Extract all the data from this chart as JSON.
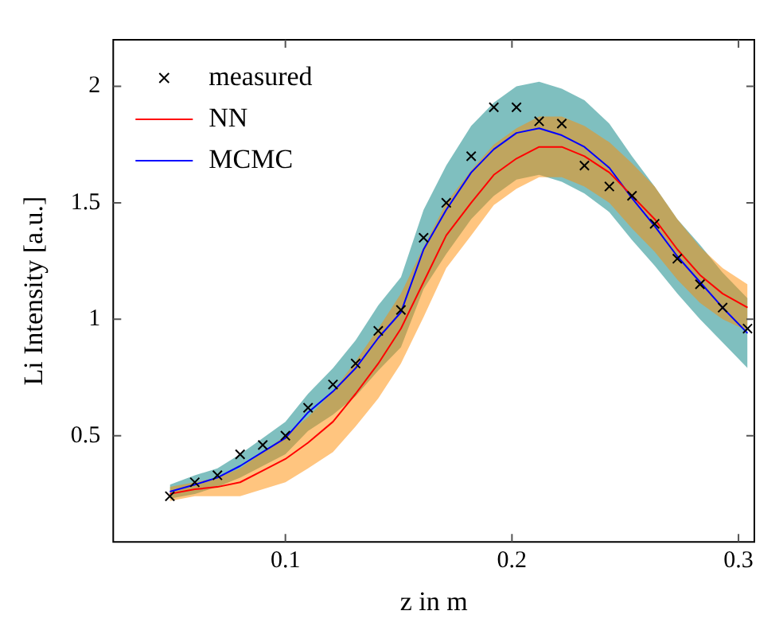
{
  "chart_data": {
    "type": "line",
    "xlabel": "z in m",
    "ylabel": "Li Intensity [a.u.]",
    "xlim": [
      0.024,
      0.307
    ],
    "ylim": [
      0.044,
      2.2
    ],
    "xticks": [
      0.1,
      0.2,
      0.3
    ],
    "yticks": [
      0.5,
      1,
      1.5,
      2
    ],
    "grid": false,
    "legend": "top left",
    "x": [
      0.049,
      0.06,
      0.07,
      0.08,
      0.09,
      0.1,
      0.11,
      0.121,
      0.131,
      0.141,
      0.151,
      0.161,
      0.171,
      0.182,
      0.192,
      0.202,
      0.212,
      0.222,
      0.232,
      0.243,
      0.253,
      0.263,
      0.273,
      0.283,
      0.293,
      0.304
    ],
    "series": [
      {
        "name": "measured",
        "type": "scatter",
        "marker": "cross",
        "color": "#000000",
        "values": [
          0.24,
          0.3,
          0.33,
          0.42,
          0.46,
          0.5,
          0.62,
          0.72,
          0.81,
          0.95,
          1.04,
          1.35,
          1.5,
          1.7,
          1.91,
          1.91,
          1.85,
          1.84,
          1.66,
          1.57,
          1.53,
          1.41,
          1.26,
          1.15,
          1.05,
          0.96
        ]
      },
      {
        "name": "NN",
        "color": "#ff0000",
        "values": [
          0.25,
          0.27,
          0.28,
          0.3,
          0.35,
          0.4,
          0.47,
          0.56,
          0.68,
          0.81,
          0.96,
          1.16,
          1.36,
          1.5,
          1.62,
          1.69,
          1.74,
          1.74,
          1.7,
          1.63,
          1.53,
          1.43,
          1.3,
          1.19,
          1.11,
          1.05
        ],
        "upper": [
          0.28,
          0.3,
          0.32,
          0.36,
          0.43,
          0.5,
          0.58,
          0.69,
          0.82,
          0.96,
          1.11,
          1.31,
          1.5,
          1.64,
          1.75,
          1.82,
          1.87,
          1.87,
          1.83,
          1.76,
          1.67,
          1.57,
          1.43,
          1.31,
          1.22,
          1.15
        ],
        "lower": [
          0.22,
          0.24,
          0.24,
          0.24,
          0.27,
          0.3,
          0.36,
          0.43,
          0.54,
          0.66,
          0.81,
          1.01,
          1.22,
          1.36,
          1.49,
          1.56,
          1.61,
          1.61,
          1.57,
          1.5,
          1.39,
          1.29,
          1.17,
          1.07,
          1.0,
          0.95
        ]
      },
      {
        "name": "MCMC",
        "color": "#0000ff",
        "values": [
          0.26,
          0.29,
          0.32,
          0.37,
          0.43,
          0.49,
          0.6,
          0.69,
          0.79,
          0.92,
          1.03,
          1.3,
          1.47,
          1.63,
          1.73,
          1.8,
          1.82,
          1.79,
          1.74,
          1.65,
          1.52,
          1.4,
          1.27,
          1.16,
          1.05,
          0.94
        ],
        "upper": [
          0.29,
          0.33,
          0.36,
          0.42,
          0.49,
          0.56,
          0.68,
          0.79,
          0.91,
          1.06,
          1.18,
          1.47,
          1.66,
          1.83,
          1.93,
          2.0,
          2.02,
          1.99,
          1.94,
          1.84,
          1.7,
          1.57,
          1.43,
          1.32,
          1.2,
          1.09
        ],
        "lower": [
          0.23,
          0.25,
          0.28,
          0.32,
          0.37,
          0.42,
          0.52,
          0.59,
          0.67,
          0.78,
          0.88,
          1.13,
          1.28,
          1.43,
          1.53,
          1.6,
          1.62,
          1.59,
          1.54,
          1.46,
          1.34,
          1.23,
          1.11,
          1.0,
          0.9,
          0.79
        ]
      }
    ]
  }
}
